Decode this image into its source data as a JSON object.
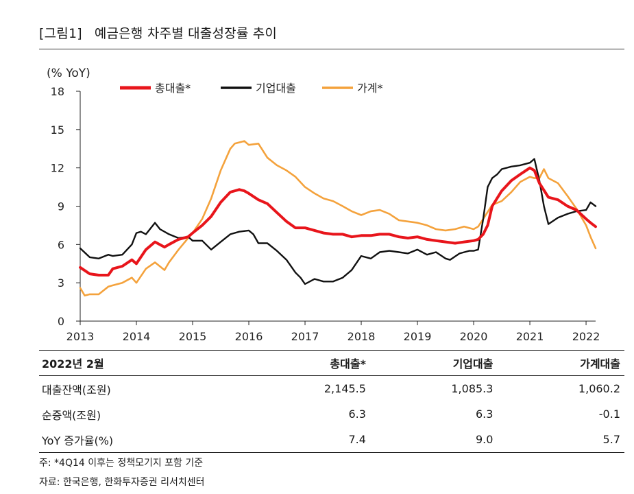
{
  "title": {
    "number": "[그림1]",
    "text": "예금은행 차주별 대출성장률 추이"
  },
  "chart_data": {
    "type": "line",
    "unit_label": "(% YoY)",
    "ylim": [
      0,
      18
    ],
    "yticks": [
      0,
      3,
      6,
      9,
      12,
      15,
      18
    ],
    "xlim": [
      2013.0,
      2022.17
    ],
    "xticks": [
      2013,
      2014,
      2015,
      2016,
      2017,
      2018,
      2019,
      2020,
      2021,
      2022
    ],
    "grid": false,
    "legend_position": "top",
    "series": [
      {
        "name": "총대출*",
        "color": "#e8151b",
        "x": [
          2013.0,
          2013.17,
          2013.33,
          2013.5,
          2013.58,
          2013.75,
          2013.92,
          2014.0,
          2014.17,
          2014.33,
          2014.5,
          2014.58,
          2014.75,
          2014.92,
          2015.0,
          2015.17,
          2015.33,
          2015.5,
          2015.67,
          2015.83,
          2015.92,
          2016.0,
          2016.17,
          2016.33,
          2016.5,
          2016.67,
          2016.83,
          2016.92,
          2017.0,
          2017.17,
          2017.33,
          2017.5,
          2017.67,
          2017.83,
          2018.0,
          2018.17,
          2018.33,
          2018.5,
          2018.67,
          2018.83,
          2019.0,
          2019.17,
          2019.33,
          2019.5,
          2019.67,
          2019.83,
          2020.0,
          2020.08,
          2020.17,
          2020.25,
          2020.33,
          2020.5,
          2020.67,
          2020.83,
          2021.0,
          2021.08,
          2021.17,
          2021.33,
          2021.5,
          2021.67,
          2021.83,
          2022.0,
          2022.08,
          2022.17
        ],
        "y": [
          4.2,
          3.7,
          3.6,
          3.6,
          4.1,
          4.3,
          4.8,
          4.5,
          5.6,
          6.2,
          5.8,
          6.0,
          6.4,
          6.6,
          6.9,
          7.5,
          8.2,
          9.3,
          10.1,
          10.3,
          10.2,
          10.0,
          9.5,
          9.2,
          8.5,
          7.8,
          7.3,
          7.3,
          7.3,
          7.1,
          6.9,
          6.8,
          6.8,
          6.6,
          6.7,
          6.7,
          6.8,
          6.8,
          6.6,
          6.5,
          6.6,
          6.4,
          6.3,
          6.2,
          6.1,
          6.2,
          6.3,
          6.4,
          6.8,
          7.5,
          9.0,
          10.2,
          11.0,
          11.5,
          12.0,
          11.8,
          10.8,
          9.7,
          9.5,
          9.0,
          8.7,
          8.0,
          7.7,
          7.4
        ]
      },
      {
        "name": "기업대출",
        "color": "#111111",
        "x": [
          2013.0,
          2013.17,
          2013.33,
          2013.5,
          2013.58,
          2013.75,
          2013.92,
          2014.0,
          2014.08,
          2014.17,
          2014.33,
          2014.42,
          2014.58,
          2014.75,
          2014.92,
          2015.0,
          2015.17,
          2015.33,
          2015.5,
          2015.67,
          2015.83,
          2016.0,
          2016.08,
          2016.17,
          2016.33,
          2016.5,
          2016.67,
          2016.83,
          2016.92,
          2017.0,
          2017.17,
          2017.33,
          2017.5,
          2017.67,
          2017.83,
          2018.0,
          2018.17,
          2018.33,
          2018.5,
          2018.67,
          2018.83,
          2019.0,
          2019.17,
          2019.33,
          2019.5,
          2019.58,
          2019.75,
          2019.92,
          2020.0,
          2020.08,
          2020.17,
          2020.25,
          2020.33,
          2020.42,
          2020.5,
          2020.67,
          2020.83,
          2021.0,
          2021.08,
          2021.17,
          2021.25,
          2021.33,
          2021.5,
          2021.67,
          2021.83,
          2022.0,
          2022.08,
          2022.17
        ],
        "y": [
          5.7,
          5.0,
          4.9,
          5.2,
          5.1,
          5.2,
          6.0,
          6.9,
          7.0,
          6.8,
          7.7,
          7.2,
          6.8,
          6.5,
          6.6,
          6.3,
          6.3,
          5.6,
          6.2,
          6.8,
          7.0,
          7.1,
          6.8,
          6.1,
          6.1,
          5.5,
          4.8,
          3.8,
          3.4,
          2.9,
          3.3,
          3.1,
          3.1,
          3.4,
          4.0,
          5.1,
          4.9,
          5.4,
          5.5,
          5.4,
          5.3,
          5.6,
          5.2,
          5.4,
          4.9,
          4.8,
          5.3,
          5.5,
          5.5,
          5.6,
          8.0,
          10.5,
          11.2,
          11.5,
          11.9,
          12.1,
          12.2,
          12.4,
          12.7,
          11.0,
          9.0,
          7.6,
          8.1,
          8.4,
          8.6,
          8.7,
          9.3,
          9.0
        ]
      },
      {
        "name": "가계*",
        "color": "#f4a23c",
        "x": [
          2013.0,
          2013.08,
          2013.17,
          2013.33,
          2013.5,
          2013.58,
          2013.75,
          2013.92,
          2014.0,
          2014.17,
          2014.33,
          2014.5,
          2014.58,
          2014.75,
          2014.92,
          2015.0,
          2015.17,
          2015.33,
          2015.5,
          2015.67,
          2015.75,
          2015.92,
          2016.0,
          2016.17,
          2016.33,
          2016.5,
          2016.67,
          2016.83,
          2017.0,
          2017.17,
          2017.33,
          2017.5,
          2017.67,
          2017.83,
          2018.0,
          2018.17,
          2018.33,
          2018.5,
          2018.67,
          2018.83,
          2019.0,
          2019.17,
          2019.33,
          2019.5,
          2019.67,
          2019.83,
          2020.0,
          2020.08,
          2020.17,
          2020.33,
          2020.5,
          2020.67,
          2020.83,
          2021.0,
          2021.08,
          2021.17,
          2021.25,
          2021.33,
          2021.5,
          2021.67,
          2021.83,
          2022.0,
          2022.08,
          2022.17
        ],
        "y": [
          2.6,
          2.0,
          2.1,
          2.1,
          2.7,
          2.8,
          3.0,
          3.4,
          3.0,
          4.1,
          4.6,
          4.0,
          4.6,
          5.6,
          6.5,
          6.9,
          8.0,
          9.6,
          11.8,
          13.5,
          13.9,
          14.1,
          13.8,
          13.9,
          12.8,
          12.2,
          11.8,
          11.3,
          10.5,
          10.0,
          9.6,
          9.4,
          9.0,
          8.6,
          8.3,
          8.6,
          8.7,
          8.4,
          7.9,
          7.8,
          7.7,
          7.5,
          7.2,
          7.1,
          7.2,
          7.4,
          7.2,
          7.4,
          8.0,
          9.1,
          9.4,
          10.1,
          10.9,
          11.3,
          11.2,
          11.2,
          11.9,
          11.2,
          10.8,
          9.8,
          8.8,
          7.5,
          6.6,
          5.7
        ]
      }
    ]
  },
  "table": {
    "headers": [
      "2022년 2월",
      "총대출*",
      "기업대출",
      "가계대출"
    ],
    "rows": [
      [
        "대출잔액(조원)",
        "2,145.5",
        "1,085.3",
        "1,060.2"
      ],
      [
        "순증액(조원)",
        "6.3",
        "6.3",
        "-0.1"
      ],
      [
        "YoY 증가율(%)",
        "7.4",
        "9.0",
        "5.7"
      ]
    ]
  },
  "notes": {
    "note": "주: *4Q14 이후는 정책모기지 포함 기준",
    "source": "자료: 한국은행, 한화투자증권 리서치센터"
  }
}
